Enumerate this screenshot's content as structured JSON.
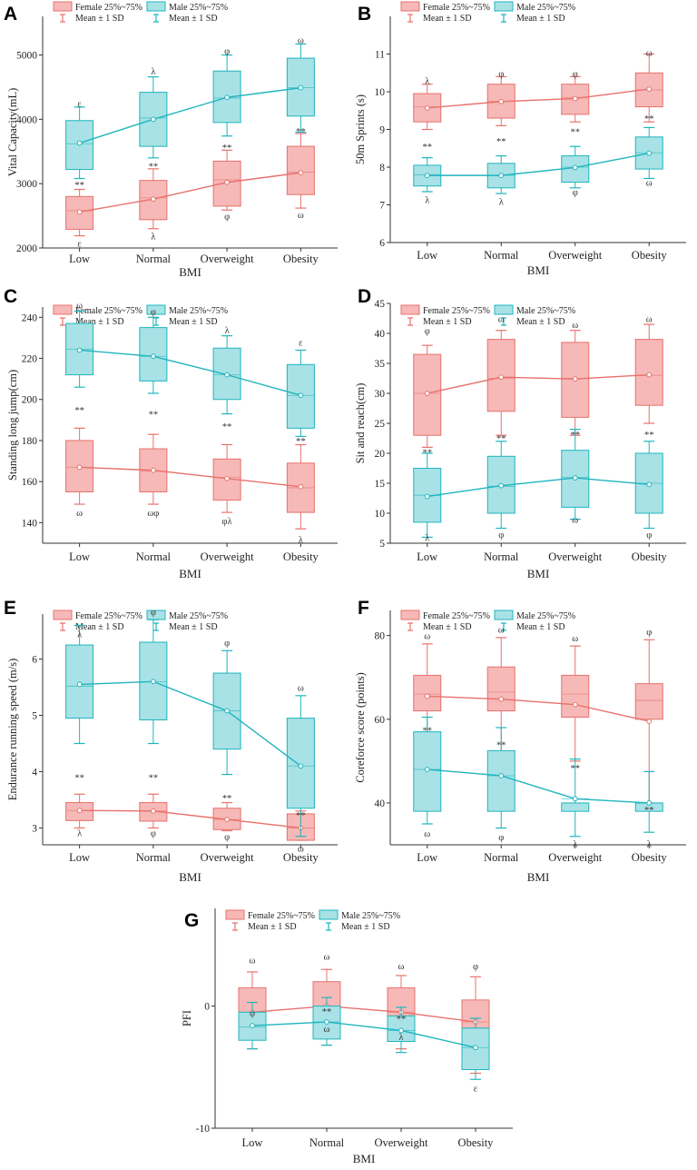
{
  "legend": {
    "female_box": "Female 25%~75%",
    "male_box": "Male 25%~75%",
    "female_mean": "Mean ± 1 SD",
    "male_mean": "Mean ± 1 SD"
  },
  "colors": {
    "female_fill": "#f6b9b7",
    "female_stroke": "#e8716c",
    "male_fill": "#a8e2e6",
    "male_stroke": "#1fb5bd",
    "axis": "#333333",
    "outlier": "#b9b9b9"
  },
  "chart_data": [
    {
      "id": "A",
      "type": "box",
      "xlabel": "BMI",
      "ylabel": "Vital Capacity(mL)",
      "categories": [
        "Low",
        "Normal",
        "Overweight",
        "Obesity"
      ],
      "ylim": [
        2000,
        5600
      ],
      "yticks": [
        2000,
        3000,
        4000,
        5000
      ],
      "series": [
        {
          "name": "Female",
          "q1": [
            2290,
            2440,
            2650,
            2830
          ],
          "q3": [
            2800,
            3050,
            3350,
            3580
          ],
          "mean": [
            2560,
            2760,
            3020,
            3170
          ],
          "median": [
            2580,
            2780,
            3060,
            3180
          ],
          "sd_low": [
            2190,
            2300,
            2590,
            2620
          ],
          "sd_high": [
            2910,
            3230,
            3520,
            3780
          ]
        },
        {
          "name": "Male",
          "q1": [
            3220,
            3580,
            3950,
            4050
          ],
          "q3": [
            3980,
            4420,
            4750,
            4950
          ],
          "mean": [
            3630,
            4000,
            4340,
            4490
          ],
          "median": [
            3620,
            4020,
            4330,
            4490
          ],
          "sd_low": [
            3080,
            3400,
            3740,
            3800
          ],
          "sd_high": [
            4190,
            4660,
            5000,
            5170
          ]
        }
      ],
      "annotations": [
        {
          "i": 0,
          "y": 4250,
          "t": "ε"
        },
        {
          "i": 0,
          "y": 2990,
          "t": "**"
        },
        {
          "i": 0,
          "y": 2080,
          "t": "ε"
        },
        {
          "i": 1,
          "y": 4750,
          "t": "λ"
        },
        {
          "i": 1,
          "y": 3280,
          "t": "**"
        },
        {
          "i": 1,
          "y": 2190,
          "t": "λ"
        },
        {
          "i": 2,
          "y": 5070,
          "t": "φ"
        },
        {
          "i": 2,
          "y": 3570,
          "t": "**"
        },
        {
          "i": 2,
          "y": 2500,
          "t": "φ"
        },
        {
          "i": 3,
          "y": 5240,
          "t": "ω"
        },
        {
          "i": 3,
          "y": 3820,
          "t": "**"
        },
        {
          "i": 3,
          "y": 2520,
          "t": "ω"
        }
      ]
    },
    {
      "id": "B",
      "type": "box",
      "xlabel": "BMI",
      "ylabel": "50m Sprints (s)",
      "categories": [
        "Low",
        "Normal",
        "Overweight",
        "Obesity"
      ],
      "ylim": [
        6,
        12
      ],
      "yticks": [
        6,
        7,
        8,
        9,
        10,
        11
      ],
      "series": [
        {
          "name": "Female",
          "q1": [
            9.2,
            9.3,
            9.4,
            9.6
          ],
          "q3": [
            9.95,
            10.2,
            10.2,
            10.5
          ],
          "mean": [
            9.57,
            9.74,
            9.82,
            10.07
          ],
          "median": [
            9.6,
            9.75,
            9.85,
            10.05
          ],
          "sd_low": [
            9.0,
            9.1,
            9.2,
            9.2
          ],
          "sd_high": [
            10.2,
            10.4,
            10.4,
            11.0
          ]
        },
        {
          "name": "Male",
          "q1": [
            7.5,
            7.45,
            7.6,
            7.95
          ],
          "q3": [
            8.05,
            8.1,
            8.3,
            8.8
          ],
          "mean": [
            7.78,
            7.78,
            7.99,
            8.37
          ],
          "median": [
            7.8,
            7.78,
            8.0,
            8.38
          ],
          "sd_low": [
            7.35,
            7.3,
            7.45,
            7.7
          ],
          "sd_high": [
            8.25,
            8.3,
            8.55,
            9.05
          ]
        }
      ],
      "annotations": [
        {
          "i": 0,
          "y": 10.3,
          "t": "λ"
        },
        {
          "i": 0,
          "y": 8.55,
          "t": "**"
        },
        {
          "i": 0,
          "y": 7.15,
          "t": "λ"
        },
        {
          "i": 1,
          "y": 10.5,
          "t": "φ"
        },
        {
          "i": 1,
          "y": 8.7,
          "t": "**"
        },
        {
          "i": 1,
          "y": 7.1,
          "t": "λ"
        },
        {
          "i": 2,
          "y": 10.5,
          "t": "φ"
        },
        {
          "i": 2,
          "y": 8.95,
          "t": "**"
        },
        {
          "i": 2,
          "y": 7.35,
          "t": "φ"
        },
        {
          "i": 3,
          "y": 11.05,
          "t": "ω"
        },
        {
          "i": 3,
          "y": 9.3,
          "t": "**"
        },
        {
          "i": 3,
          "y": 7.6,
          "t": "ω"
        }
      ]
    },
    {
      "id": "C",
      "type": "box",
      "xlabel": "BMI",
      "ylabel": "Standing long jump(cm)",
      "categories": [
        "Low",
        "Normal",
        "Overweight",
        "Obesity"
      ],
      "ylim": [
        130,
        245
      ],
      "yticks": [
        140,
        160,
        180,
        200,
        220,
        240
      ],
      "series": [
        {
          "name": "Female",
          "q1": [
            155,
            155,
            151,
            145
          ],
          "q3": [
            180,
            176,
            171,
            169
          ],
          "mean": [
            167,
            165.5,
            161.5,
            157.5
          ],
          "median": [
            167,
            165,
            162,
            157
          ],
          "sd_low": [
            149,
            149,
            145,
            137
          ],
          "sd_high": [
            186,
            183,
            178,
            178
          ]
        },
        {
          "name": "Male",
          "q1": [
            212,
            209,
            200,
            186
          ],
          "q3": [
            237,
            235,
            225,
            217
          ],
          "mean": [
            224,
            221,
            212,
            202
          ],
          "median": [
            224.5,
            221,
            212,
            202
          ],
          "sd_low": [
            206,
            203,
            193,
            182
          ],
          "sd_high": [
            243,
            240,
            231,
            224
          ]
        }
      ],
      "annotations": [
        {
          "i": 0,
          "y": 246,
          "t": "ω"
        },
        {
          "i": 0,
          "y": 195,
          "t": "**"
        },
        {
          "i": 0,
          "y": 145,
          "t": "ω"
        },
        {
          "i": 1,
          "y": 243,
          "t": "φ"
        },
        {
          "i": 1,
          "y": 193,
          "t": "**"
        },
        {
          "i": 1,
          "y": 145,
          "t": "ωφ"
        },
        {
          "i": 2,
          "y": 234,
          "t": "λ"
        },
        {
          "i": 2,
          "y": 187,
          "t": "**"
        },
        {
          "i": 2,
          "y": 141,
          "t": "φλ"
        },
        {
          "i": 3,
          "y": 228,
          "t": "ε"
        },
        {
          "i": 3,
          "y": 180,
          "t": "**"
        },
        {
          "i": 3,
          "y": 132,
          "t": "λ"
        }
      ]
    },
    {
      "id": "D",
      "type": "box",
      "xlabel": "BMI",
      "ylabel": "Sit and reach(cm)",
      "categories": [
        "Low",
        "Normal",
        "Overweight",
        "Obesity"
      ],
      "ylim": [
        5,
        45
      ],
      "yticks": [
        5,
        10,
        15,
        20,
        25,
        30,
        35,
        40,
        45
      ],
      "series": [
        {
          "name": "Female",
          "q1": [
            23,
            27,
            26,
            28
          ],
          "q3": [
            36.5,
            39,
            38.5,
            39
          ],
          "mean": [
            30,
            32.7,
            32.4,
            33.1
          ],
          "median": [
            30,
            32.5,
            32.5,
            33
          ],
          "sd_low": [
            21,
            23,
            23,
            25
          ],
          "sd_high": [
            38,
            40.5,
            40.5,
            41.5
          ]
        },
        {
          "name": "Male",
          "q1": [
            8.5,
            10,
            11,
            10
          ],
          "q3": [
            17.5,
            19.5,
            20.5,
            20
          ],
          "mean": [
            12.8,
            14.6,
            15.9,
            14.8
          ],
          "median": [
            13,
            14.5,
            16,
            15
          ],
          "sd_low": [
            6,
            7.5,
            9,
            7.5
          ],
          "sd_high": [
            20,
            22,
            24,
            22
          ]
        }
      ],
      "annotations": [
        {
          "i": 0,
          "y": 40.5,
          "t": "φ"
        },
        {
          "i": 0,
          "y": 20.2,
          "t": "**"
        },
        {
          "i": 0,
          "y": 6,
          "t": "λ"
        },
        {
          "i": 1,
          "y": 42.5,
          "t": "ω"
        },
        {
          "i": 1,
          "y": 22.6,
          "t": "**"
        },
        {
          "i": 1,
          "y": 6.5,
          "t": "φ"
        },
        {
          "i": 2,
          "y": 41.5,
          "t": "ω"
        },
        {
          "i": 2,
          "y": 23.2,
          "t": "**"
        },
        {
          "i": 2,
          "y": 9,
          "t": "ω"
        },
        {
          "i": 3,
          "y": 42.5,
          "t": "ω"
        },
        {
          "i": 3,
          "y": 23.2,
          "t": "**"
        },
        {
          "i": 3,
          "y": 6.5,
          "t": "φ"
        }
      ]
    },
    {
      "id": "E",
      "type": "box",
      "xlabel": "BMI",
      "ylabel": "Endurance running speed (m/s)",
      "categories": [
        "Low",
        "Normal",
        "Overweight",
        "Obesity"
      ],
      "ylim": [
        2.7,
        6.8
      ],
      "yticks": [
        3,
        4,
        5,
        6
      ],
      "series": [
        {
          "name": "Female",
          "q1": [
            3.13,
            3.12,
            2.97,
            2.78
          ],
          "q3": [
            3.45,
            3.45,
            3.35,
            3.25
          ],
          "mean": [
            3.31,
            3.3,
            3.15,
            3.0
          ],
          "median": [
            3.31,
            3.3,
            3.15,
            3.0
          ],
          "sd_low": [
            3.0,
            3.0,
            2.95,
            2.78
          ],
          "sd_high": [
            3.6,
            3.6,
            3.45,
            3.3
          ]
        },
        {
          "name": "Male",
          "q1": [
            4.95,
            4.92,
            4.4,
            3.35
          ],
          "q3": [
            6.25,
            6.3,
            5.75,
            4.95
          ],
          "mean": [
            5.55,
            5.6,
            5.08,
            4.1
          ],
          "median": [
            5.52,
            5.6,
            5.08,
            4.1
          ],
          "sd_low": [
            4.5,
            4.5,
            3.95,
            2.85
          ],
          "sd_high": [
            6.6,
            6.7,
            6.15,
            5.35
          ]
        }
      ],
      "annotations": [
        {
          "i": 0,
          "y": 6.45,
          "t": "λ"
        },
        {
          "i": 0,
          "y": 3.9,
          "t": "**"
        },
        {
          "i": 0,
          "y": 2.92,
          "t": "λ"
        },
        {
          "i": 1,
          "y": 6.85,
          "t": "φ"
        },
        {
          "i": 1,
          "y": 3.9,
          "t": "**"
        },
        {
          "i": 1,
          "y": 2.92,
          "t": "φ"
        },
        {
          "i": 2,
          "y": 6.3,
          "t": "φ"
        },
        {
          "i": 2,
          "y": 3.54,
          "t": "**"
        },
        {
          "i": 2,
          "y": 2.85,
          "t": "φ"
        },
        {
          "i": 3,
          "y": 5.5,
          "t": "ω"
        },
        {
          "i": 3,
          "y": 3.23,
          "t": "**"
        },
        {
          "i": 3,
          "y": 2.64,
          "t": "ω"
        }
      ]
    },
    {
      "id": "F",
      "type": "box",
      "xlabel": "BMI",
      "ylabel": "Coreforce score (points)",
      "categories": [
        "Low",
        "Normal",
        "Overweight",
        "Obesity"
      ],
      "ylim": [
        30,
        86
      ],
      "yticks": [
        40,
        60,
        80
      ],
      "series": [
        {
          "name": "Female",
          "q1": [
            62,
            62,
            60.5,
            60
          ],
          "q3": [
            70.5,
            72.5,
            70.5,
            68.5
          ],
          "mean": [
            65.5,
            64.8,
            63.5,
            59.5
          ],
          "median": [
            66,
            66.5,
            66,
            64.5
          ],
          "sd_low": [
            53,
            50,
            50,
            40
          ],
          "sd_high": [
            78,
            79.5,
            77.5,
            79
          ]
        },
        {
          "name": "Male",
          "q1": [
            38,
            38,
            38,
            38
          ],
          "q3": [
            57,
            52.5,
            40,
            40
          ],
          "mean": [
            48,
            46.5,
            41,
            40
          ],
          "median": [
            48,
            46.5,
            41,
            40
          ],
          "sd_low": [
            35,
            34,
            32,
            33
          ],
          "sd_high": [
            60.5,
            58,
            50.5,
            47.5
          ]
        }
      ],
      "annotations": [
        {
          "i": 0,
          "y": 80,
          "t": "ω"
        },
        {
          "i": 0,
          "y": 57.5,
          "t": "**"
        },
        {
          "i": 0,
          "y": 32.8,
          "t": "ω"
        },
        {
          "i": 1,
          "y": 81.5,
          "t": "ω"
        },
        {
          "i": 1,
          "y": 54,
          "t": "**"
        },
        {
          "i": 1,
          "y": 32,
          "t": "φ"
        },
        {
          "i": 2,
          "y": 79.5,
          "t": "ω"
        },
        {
          "i": 2,
          "y": 48.5,
          "t": "**"
        },
        {
          "i": 2,
          "y": 30.3,
          "t": "λ"
        },
        {
          "i": 3,
          "y": 81,
          "t": "φ"
        },
        {
          "i": 3,
          "y": 38.5,
          "t": "**"
        },
        {
          "i": 3,
          "y": 30.3,
          "t": "λ"
        }
      ]
    },
    {
      "id": "G",
      "type": "box",
      "xlabel": "BMI",
      "ylabel": "PFI",
      "categories": [
        "Low",
        "Normal",
        "Overweight",
        "Obesity"
      ],
      "ylim": [
        -10,
        8
      ],
      "yticks": [
        -10,
        0
      ],
      "series": [
        {
          "name": "Female",
          "q1": [
            -2.5,
            -2.3,
            -2.5,
            -3.2
          ],
          "q3": [
            1.5,
            2.0,
            1.5,
            0.5
          ],
          "mean": [
            -0.5,
            0.0,
            -0.5,
            -1.3
          ],
          "median": [
            -0.5,
            0.0,
            -0.5,
            -1.3
          ],
          "sd_low": [
            -3.5,
            -3.2,
            -3.5,
            -5.5
          ],
          "sd_high": [
            2.8,
            3.0,
            2.5,
            2.4
          ]
        },
        {
          "name": "Male",
          "q1": [
            -2.8,
            -2.7,
            -2.9,
            -5.2
          ],
          "q3": [
            -0.5,
            0.0,
            -0.8,
            -1.8
          ],
          "mean": [
            -1.6,
            -1.3,
            -2.0,
            -3.4
          ],
          "median": [
            -1.7,
            -1.3,
            -2.0,
            -3.4
          ],
          "sd_low": [
            -3.5,
            -3.2,
            -3.8,
            -6.0
          ],
          "sd_high": [
            0.3,
            0.7,
            -0.1,
            -1.0
          ]
        }
      ],
      "annotations": [
        {
          "i": 0,
          "y": 3.8,
          "t": "ω"
        },
        {
          "i": 0,
          "y": -0.5,
          "t": "φ"
        },
        {
          "i": 1,
          "y": 4.1,
          "t": "ω"
        },
        {
          "i": 1,
          "y": -0.4,
          "t": "**"
        },
        {
          "i": 1,
          "y": -1.8,
          "t": "ω"
        },
        {
          "i": 2,
          "y": 3.3,
          "t": "ω"
        },
        {
          "i": 2,
          "y": -1.0,
          "t": "**"
        },
        {
          "i": 2,
          "y": -2.5,
          "t": "λ"
        },
        {
          "i": 3,
          "y": 3.3,
          "t": "φ"
        },
        {
          "i": 3,
          "y": -6.7,
          "t": "ε"
        }
      ]
    }
  ]
}
